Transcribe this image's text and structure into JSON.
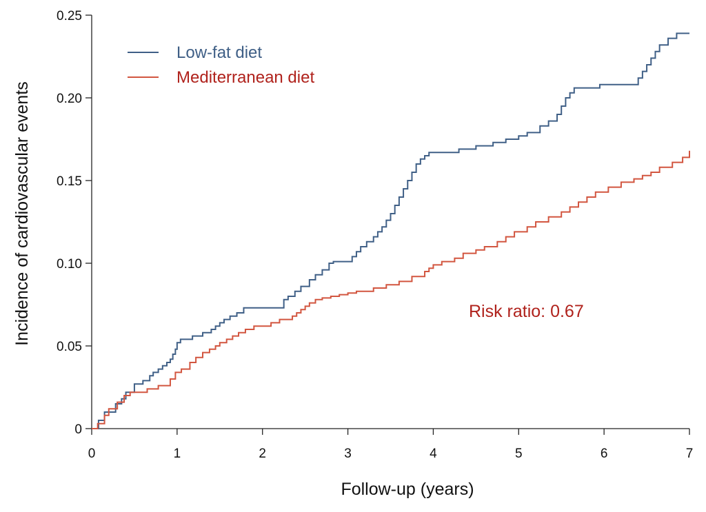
{
  "chart_data": {
    "type": "line",
    "title": "",
    "xlabel": "Follow-up (years)",
    "ylabel": "Incidence of cardiovascular events",
    "xlim": [
      0,
      7
    ],
    "ylim": [
      0,
      0.25
    ],
    "x_ticks": [
      0,
      1,
      2,
      3,
      4,
      5,
      6,
      7
    ],
    "x_tick_labels": [
      "0",
      "1",
      "2",
      "3",
      "4",
      "5",
      "6",
      "7"
    ],
    "y_ticks": [
      0,
      0.05,
      0.1,
      0.15,
      0.2,
      0.25
    ],
    "y_tick_labels": [
      "0",
      "0.05",
      "0.10",
      "0.15",
      "0.20",
      "0.25"
    ],
    "grid": false,
    "legend_position": "top-left",
    "annotation": "Risk ratio: 0.67",
    "annotation_color": "#b0221c",
    "series": [
      {
        "name": "Low-fat diet",
        "color": "#3f5f86",
        "step": true,
        "x": [
          0.08,
          0.15,
          0.2,
          0.28,
          0.35,
          0.4,
          0.5,
          0.6,
          0.68,
          0.72,
          0.78,
          0.83,
          0.88,
          0.92,
          0.95,
          0.98,
          1.0,
          1.04,
          1.08,
          1.18,
          1.3,
          1.4,
          1.45,
          1.5,
          1.55,
          1.62,
          1.7,
          1.78,
          1.9,
          2.0,
          2.1,
          2.25,
          2.3,
          2.38,
          2.45,
          2.55,
          2.62,
          2.7,
          2.78,
          2.83,
          3.0,
          3.05,
          3.1,
          3.15,
          3.22,
          3.3,
          3.35,
          3.4,
          3.45,
          3.5,
          3.55,
          3.6,
          3.65,
          3.7,
          3.75,
          3.8,
          3.85,
          3.9,
          3.95,
          4.05,
          4.12,
          4.3,
          4.5,
          4.7,
          4.85,
          5.0,
          5.1,
          5.25,
          5.35,
          5.45,
          5.5,
          5.55,
          5.6,
          5.65,
          5.8,
          5.95,
          6.2,
          6.4,
          6.45,
          6.5,
          6.55,
          6.6,
          6.65,
          6.75,
          6.85,
          6.92,
          7.0
        ],
        "y": [
          0.005,
          0.01,
          0.01,
          0.015,
          0.018,
          0.022,
          0.027,
          0.029,
          0.032,
          0.034,
          0.036,
          0.038,
          0.04,
          0.042,
          0.045,
          0.048,
          0.052,
          0.054,
          0.054,
          0.056,
          0.058,
          0.06,
          0.062,
          0.064,
          0.066,
          0.068,
          0.07,
          0.073,
          0.073,
          0.073,
          0.073,
          0.078,
          0.08,
          0.083,
          0.086,
          0.09,
          0.093,
          0.096,
          0.1,
          0.101,
          0.101,
          0.104,
          0.107,
          0.11,
          0.113,
          0.116,
          0.119,
          0.122,
          0.126,
          0.13,
          0.135,
          0.14,
          0.145,
          0.15,
          0.155,
          0.16,
          0.163,
          0.165,
          0.167,
          0.167,
          0.167,
          0.169,
          0.171,
          0.173,
          0.175,
          0.177,
          0.179,
          0.183,
          0.186,
          0.19,
          0.195,
          0.2,
          0.203,
          0.206,
          0.206,
          0.208,
          0.208,
          0.212,
          0.216,
          0.22,
          0.224,
          0.228,
          0.232,
          0.236,
          0.239,
          0.239,
          0.239
        ]
      },
      {
        "name": "Mediterranean diet",
        "color": "#d2553f",
        "step": true,
        "x": [
          0.07,
          0.15,
          0.2,
          0.3,
          0.38,
          0.45,
          0.6,
          0.65,
          0.78,
          0.92,
          0.98,
          1.05,
          1.15,
          1.22,
          1.3,
          1.38,
          1.45,
          1.5,
          1.58,
          1.65,
          1.72,
          1.8,
          1.9,
          2.0,
          2.1,
          2.2,
          2.35,
          2.4,
          2.45,
          2.5,
          2.55,
          2.62,
          2.7,
          2.8,
          2.9,
          3.0,
          3.1,
          3.3,
          3.45,
          3.6,
          3.75,
          3.9,
          3.95,
          4.0,
          4.1,
          4.25,
          4.35,
          4.5,
          4.6,
          4.75,
          4.85,
          4.95,
          5.1,
          5.2,
          5.35,
          5.5,
          5.6,
          5.7,
          5.8,
          5.9,
          6.05,
          6.2,
          6.35,
          6.45,
          6.55,
          6.65,
          6.8,
          6.92,
          7.0
        ],
        "y": [
          0.003,
          0.008,
          0.012,
          0.016,
          0.02,
          0.022,
          0.022,
          0.024,
          0.026,
          0.03,
          0.034,
          0.036,
          0.04,
          0.043,
          0.046,
          0.048,
          0.05,
          0.052,
          0.054,
          0.056,
          0.058,
          0.06,
          0.062,
          0.062,
          0.064,
          0.066,
          0.068,
          0.07,
          0.072,
          0.074,
          0.076,
          0.078,
          0.079,
          0.08,
          0.081,
          0.082,
          0.083,
          0.085,
          0.087,
          0.089,
          0.092,
          0.095,
          0.097,
          0.099,
          0.101,
          0.103,
          0.106,
          0.108,
          0.11,
          0.113,
          0.116,
          0.119,
          0.122,
          0.125,
          0.128,
          0.131,
          0.134,
          0.137,
          0.14,
          0.143,
          0.146,
          0.149,
          0.151,
          0.153,
          0.155,
          0.158,
          0.161,
          0.164,
          0.168
        ]
      }
    ]
  }
}
